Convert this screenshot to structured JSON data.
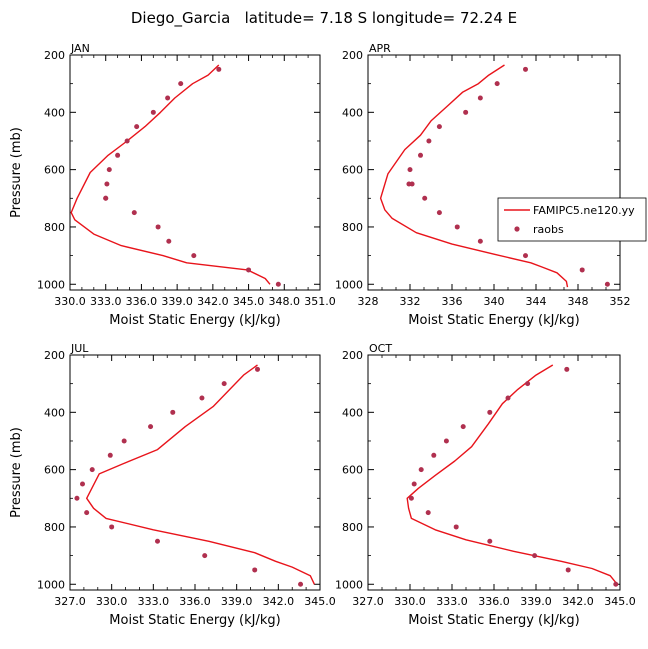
{
  "title": "Diego_Garcia   latitude= 7.18 S longitude= 72.24 E",
  "legend": {
    "model_label": "FAMIPC5.ne120.yy",
    "obs_label": "raobs"
  },
  "colors": {
    "model": "#e8141b",
    "obs": "#b0304f",
    "axis": "#000000"
  },
  "chart_data": [
    {
      "type": "line",
      "panel": "JAN",
      "xlabel": "Moist Static Energy (kJ/kg)",
      "ylabel": "Pressure (mb)",
      "xlim": [
        330.0,
        351.0
      ],
      "xticks": [
        330.0,
        333.0,
        336.0,
        339.0,
        342.0,
        345.0,
        348.0,
        351.0
      ],
      "xtick_labels": [
        "330.0",
        "333.0",
        "336.0",
        "339.0",
        "342.0",
        "345.0",
        "348.0",
        "351.0"
      ],
      "ylim": [
        1020,
        200
      ],
      "yticks": [
        200,
        400,
        600,
        800,
        1000
      ],
      "grid": false,
      "series": [
        {
          "name": "FAMIPC5.ne120.yy",
          "kind": "line",
          "x": [
            342.5,
            341.6,
            340.3,
            338.8,
            337.6,
            336.3,
            334.8,
            333.2,
            331.7,
            330.6,
            330.1,
            330.4,
            332.0,
            334.3,
            337.8,
            339.8,
            344.9,
            346.4,
            346.8
          ],
          "y": [
            235,
            270,
            300,
            350,
            400,
            450,
            500,
            550,
            610,
            700,
            750,
            775,
            825,
            865,
            900,
            925,
            950,
            980,
            1000
          ]
        },
        {
          "name": "raobs",
          "kind": "scatter",
          "x": [
            342.5,
            339.3,
            338.2,
            337.0,
            335.6,
            334.8,
            334.0,
            333.3,
            333.1,
            333.0,
            333.0,
            335.4,
            337.4,
            338.3,
            340.4,
            345.0,
            347.5
          ],
          "y": [
            250,
            300,
            350,
            400,
            450,
            500,
            550,
            600,
            650,
            700,
            700,
            750,
            800,
            850,
            900,
            950,
            1000
          ]
        }
      ]
    },
    {
      "type": "line",
      "panel": "APR",
      "xlabel": "Moist Static Energy (kJ/kg)",
      "ylabel": "",
      "xlim": [
        328,
        352
      ],
      "xticks": [
        328,
        332,
        336,
        340,
        344,
        348,
        352
      ],
      "xtick_labels": [
        "328",
        "332",
        "336",
        "340",
        "344",
        "348",
        "352"
      ],
      "ylim": [
        1020,
        200
      ],
      "yticks": [
        200,
        400,
        600,
        800,
        1000
      ],
      "grid": false,
      "series": [
        {
          "name": "FAMIPC5.ne120.yy",
          "kind": "line",
          "x": [
            341.0,
            339.5,
            338.5,
            337.0,
            335.5,
            334.0,
            333.0,
            331.5,
            329.9,
            329.2,
            329.6,
            330.3,
            332.6,
            336.0,
            340.0,
            343.5,
            344.6,
            346.0,
            346.9,
            347.0
          ],
          "y": [
            235,
            270,
            300,
            330,
            380,
            430,
            480,
            530,
            615,
            700,
            740,
            770,
            820,
            860,
            895,
            925,
            940,
            960,
            990,
            1010
          ]
        },
        {
          "name": "raobs",
          "kind": "scatter",
          "x": [
            343.0,
            340.3,
            338.7,
            337.3,
            334.8,
            333.8,
            333.0,
            332.0,
            331.9,
            332.2,
            333.4,
            334.8,
            336.5,
            338.7,
            343.0,
            348.4,
            350.8
          ],
          "y": [
            250,
            300,
            350,
            400,
            450,
            500,
            550,
            600,
            650,
            650,
            700,
            750,
            800,
            850,
            900,
            950,
            1000
          ]
        }
      ]
    },
    {
      "type": "line",
      "panel": "JUL",
      "xlabel": "Moist Static Energy (kJ/kg)",
      "ylabel": "Pressure (mb)",
      "xlim": [
        327.0,
        345.0
      ],
      "xticks": [
        327.0,
        330.0,
        333.0,
        336.0,
        339.0,
        342.0,
        345.0
      ],
      "xtick_labels": [
        "327.0",
        "330.0",
        "333.0",
        "336.0",
        "339.0",
        "342.0",
        "345.0"
      ],
      "ylim": [
        1020,
        200
      ],
      "yticks": [
        200,
        400,
        600,
        800,
        1000
      ],
      "grid": false,
      "series": [
        {
          "name": "FAMIPC5.ne120.yy",
          "kind": "line",
          "x": [
            340.5,
            339.5,
            337.3,
            335.3,
            333.3,
            330.8,
            329.1,
            328.2,
            328.7,
            329.6,
            333.0,
            337.0,
            340.3,
            341.8,
            343.0,
            344.3,
            344.6
          ],
          "y": [
            235,
            270,
            380,
            450,
            530,
            580,
            615,
            700,
            735,
            770,
            810,
            850,
            890,
            920,
            940,
            970,
            1000
          ]
        },
        {
          "name": "raobs",
          "kind": "scatter",
          "x": [
            340.5,
            338.1,
            336.5,
            334.4,
            332.8,
            330.9,
            329.9,
            328.6,
            327.9,
            327.5,
            328.2,
            330.0,
            333.3,
            336.7,
            340.3,
            343.6
          ],
          "y": [
            250,
            300,
            350,
            400,
            450,
            500,
            550,
            600,
            650,
            700,
            750,
            800,
            850,
            900,
            950,
            1000
          ]
        }
      ]
    },
    {
      "type": "line",
      "panel": "OCT",
      "xlabel": "Moist Static Energy (kJ/kg)",
      "ylabel": "",
      "xlim": [
        327.0,
        345.0
      ],
      "xticks": [
        327.0,
        330.0,
        333.0,
        336.0,
        339.0,
        342.0,
        345.0
      ],
      "xtick_labels": [
        "327.0",
        "330.0",
        "333.0",
        "336.0",
        "339.0",
        "342.0",
        "345.0"
      ],
      "ylim": [
        1020,
        200
      ],
      "yticks": [
        200,
        400,
        600,
        800,
        1000
      ],
      "grid": false,
      "series": [
        {
          "name": "FAMIPC5.ne120.yy",
          "kind": "line",
          "x": [
            340.2,
            339.0,
            337.7,
            336.6,
            335.6,
            334.4,
            333.2,
            331.8,
            330.6,
            329.8,
            329.9,
            330.1,
            331.8,
            334.0,
            337.4,
            340.8,
            343.0,
            344.3,
            344.8
          ],
          "y": [
            235,
            270,
            320,
            370,
            440,
            520,
            570,
            620,
            665,
            700,
            735,
            770,
            810,
            845,
            885,
            920,
            945,
            970,
            1000
          ]
        },
        {
          "name": "raobs",
          "kind": "scatter",
          "x": [
            341.2,
            338.4,
            337.0,
            335.7,
            333.8,
            332.6,
            331.7,
            330.8,
            330.3,
            330.1,
            331.3,
            333.3,
            335.7,
            338.9,
            341.3,
            344.7
          ],
          "y": [
            250,
            300,
            350,
            400,
            450,
            500,
            550,
            600,
            650,
            700,
            750,
            800,
            850,
            900,
            950,
            1000
          ]
        }
      ]
    }
  ]
}
